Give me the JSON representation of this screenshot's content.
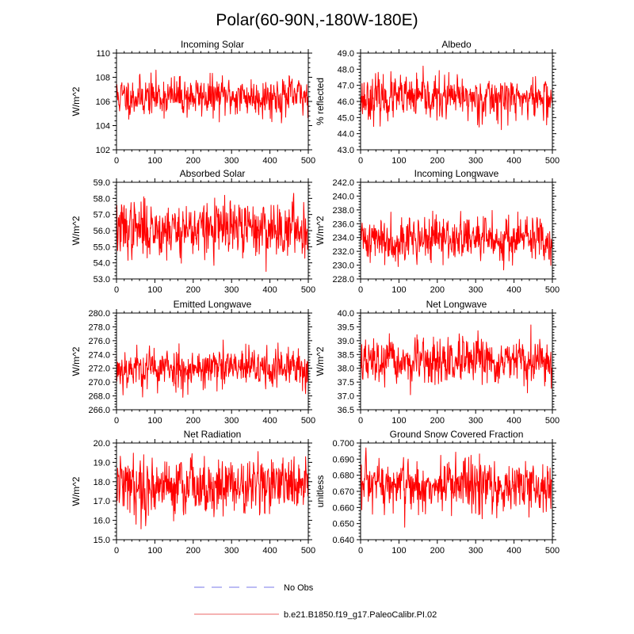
{
  "figure": {
    "title": "Polar(60-90N,-180W-180E)"
  },
  "legend": {
    "no_obs_label": "No Obs",
    "model_label": "b.e21.B1850.f19_g17.PaleoCalibr.PI.02",
    "no_obs_color": "#a6a6f0",
    "model_color": "#f29a9a"
  },
  "colors": {
    "series": "#ff0000",
    "axis": "#000000"
  },
  "chart_data": [
    {
      "type": "line",
      "title": "Incoming Solar",
      "ylabel": "W/m^2",
      "xlim": [
        0,
        500
      ],
      "ylim": [
        102,
        110
      ],
      "xticks": [
        0,
        100,
        200,
        300,
        400,
        500
      ],
      "xtick_labels": [
        "0",
        "100",
        "200",
        "300",
        "400",
        "500"
      ],
      "yticks": [
        102,
        104,
        106,
        108,
        110
      ],
      "ytick_labels": [
        "102",
        "104",
        "106",
        "108",
        "110"
      ],
      "series": [
        {
          "name": "b.e21.B1850.f19_g17.PaleoCalibr.PI.02",
          "n": 500,
          "mean": 106.4,
          "std": 0.8,
          "min": 102.3,
          "max": 109.4,
          "seed": 11
        }
      ]
    },
    {
      "type": "line",
      "title": "Albedo",
      "ylabel": "% reflected",
      "xlim": [
        0,
        500
      ],
      "ylim": [
        43.0,
        49.0
      ],
      "xticks": [
        0,
        100,
        200,
        300,
        400,
        500
      ],
      "xtick_labels": [
        "0",
        "100",
        "200",
        "300",
        "400",
        "500"
      ],
      "yticks": [
        43,
        44,
        45,
        46,
        47,
        48,
        49
      ],
      "ytick_labels": [
        "43.0",
        "44.0",
        "45.0",
        "46.0",
        "47.0",
        "48.0",
        "49.0"
      ],
      "series": [
        {
          "name": "b.e21.B1850.f19_g17.PaleoCalibr.PI.02",
          "n": 500,
          "mean": 46.2,
          "std": 0.65,
          "min": 43.7,
          "max": 48.5,
          "seed": 23
        }
      ]
    },
    {
      "type": "line",
      "title": "Absorbed Solar",
      "ylabel": "W/m^2",
      "xlim": [
        0,
        500
      ],
      "ylim": [
        53.0,
        59.0
      ],
      "xticks": [
        0,
        100,
        200,
        300,
        400,
        500
      ],
      "xtick_labels": [
        "0",
        "100",
        "200",
        "300",
        "400",
        "500"
      ],
      "yticks": [
        53,
        54,
        55,
        56,
        57,
        58,
        59
      ],
      "ytick_labels": [
        "53.0",
        "54.0",
        "55.0",
        "56.0",
        "57.0",
        "58.0",
        "59.0"
      ],
      "series": [
        {
          "name": "b.e21.B1850.f19_g17.PaleoCalibr.PI.02",
          "n": 500,
          "mean": 56.1,
          "std": 0.85,
          "min": 53.4,
          "max": 58.8,
          "seed": 37
        }
      ]
    },
    {
      "type": "line",
      "title": "Incoming Longwave",
      "ylabel": "W/m^2",
      "xlim": [
        0,
        500
      ],
      "ylim": [
        228.0,
        242.0
      ],
      "xticks": [
        0,
        100,
        200,
        300,
        400,
        500
      ],
      "xtick_labels": [
        "0",
        "100",
        "200",
        "300",
        "400",
        "500"
      ],
      "yticks": [
        228,
        230,
        232,
        234,
        236,
        238,
        240,
        242
      ],
      "ytick_labels": [
        "228.0",
        "230.0",
        "232.0",
        "234.0",
        "236.0",
        "238.0",
        "240.0",
        "242.0"
      ],
      "series": [
        {
          "name": "b.e21.B1850.f19_g17.PaleoCalibr.PI.02",
          "n": 500,
          "mean": 233.8,
          "std": 1.6,
          "min": 229.2,
          "max": 240.6,
          "seed": 41
        }
      ]
    },
    {
      "type": "line",
      "title": "Emitted Longwave",
      "ylabel": "W/m^2",
      "xlim": [
        0,
        500
      ],
      "ylim": [
        266.0,
        280.0
      ],
      "xticks": [
        0,
        100,
        200,
        300,
        400,
        500
      ],
      "xtick_labels": [
        "0",
        "100",
        "200",
        "300",
        "400",
        "500"
      ],
      "yticks": [
        266,
        268,
        270,
        272,
        274,
        276,
        278,
        280
      ],
      "ytick_labels": [
        "266.0",
        "268.0",
        "270.0",
        "272.0",
        "274.0",
        "276.0",
        "278.0",
        "280.0"
      ],
      "series": [
        {
          "name": "b.e21.B1850.f19_g17.PaleoCalibr.PI.02",
          "n": 500,
          "mean": 272.0,
          "std": 1.5,
          "min": 267.3,
          "max": 278.7,
          "seed": 53
        }
      ]
    },
    {
      "type": "line",
      "title": "Net Longwave",
      "ylabel": "W/m^2",
      "xlim": [
        0,
        500
      ],
      "ylim": [
        36.5,
        40.0
      ],
      "xticks": [
        0,
        100,
        200,
        300,
        400,
        500
      ],
      "xtick_labels": [
        "0",
        "100",
        "200",
        "300",
        "400",
        "500"
      ],
      "yticks": [
        36.5,
        37.0,
        37.5,
        38.0,
        38.5,
        39.0,
        39.5,
        40.0
      ],
      "ytick_labels": [
        "36.5",
        "37.0",
        "37.5",
        "38.0",
        "38.5",
        "39.0",
        "39.5",
        "40.0"
      ],
      "series": [
        {
          "name": "b.e21.B1850.f19_g17.PaleoCalibr.PI.02",
          "n": 500,
          "mean": 38.2,
          "std": 0.4,
          "min": 36.7,
          "max": 40.0,
          "seed": 67
        }
      ]
    },
    {
      "type": "line",
      "title": "Net Radiation",
      "ylabel": "W/m^2",
      "xlim": [
        0,
        500
      ],
      "ylim": [
        15.0,
        20.0
      ],
      "xticks": [
        0,
        100,
        200,
        300,
        400,
        500
      ],
      "xtick_labels": [
        "0",
        "100",
        "200",
        "300",
        "400",
        "500"
      ],
      "yticks": [
        15,
        16,
        17,
        18,
        19,
        20
      ],
      "ytick_labels": [
        "15.0",
        "16.0",
        "17.0",
        "18.0",
        "19.0",
        "20.0"
      ],
      "series": [
        {
          "name": "b.e21.B1850.f19_g17.PaleoCalibr.PI.02",
          "n": 500,
          "mean": 17.8,
          "std": 0.75,
          "min": 15.5,
          "max": 19.8,
          "seed": 79
        }
      ]
    },
    {
      "type": "line",
      "title": "Ground Snow Covered Fraction",
      "ylabel": "unitless",
      "xlim": [
        0,
        500
      ],
      "ylim": [
        0.64,
        0.7
      ],
      "xticks": [
        0,
        100,
        200,
        300,
        400,
        500
      ],
      "xtick_labels": [
        "0",
        "100",
        "200",
        "300",
        "400",
        "500"
      ],
      "yticks": [
        0.64,
        0.65,
        0.66,
        0.67,
        0.68,
        0.69,
        0.7
      ],
      "ytick_labels": [
        "0.640",
        "0.650",
        "0.660",
        "0.670",
        "0.680",
        "0.690",
        "0.700"
      ],
      "series": [
        {
          "name": "b.e21.B1850.f19_g17.PaleoCalibr.PI.02",
          "n": 500,
          "mean": 0.673,
          "std": 0.0085,
          "min": 0.644,
          "max": 0.697,
          "seed": 97
        }
      ]
    }
  ]
}
